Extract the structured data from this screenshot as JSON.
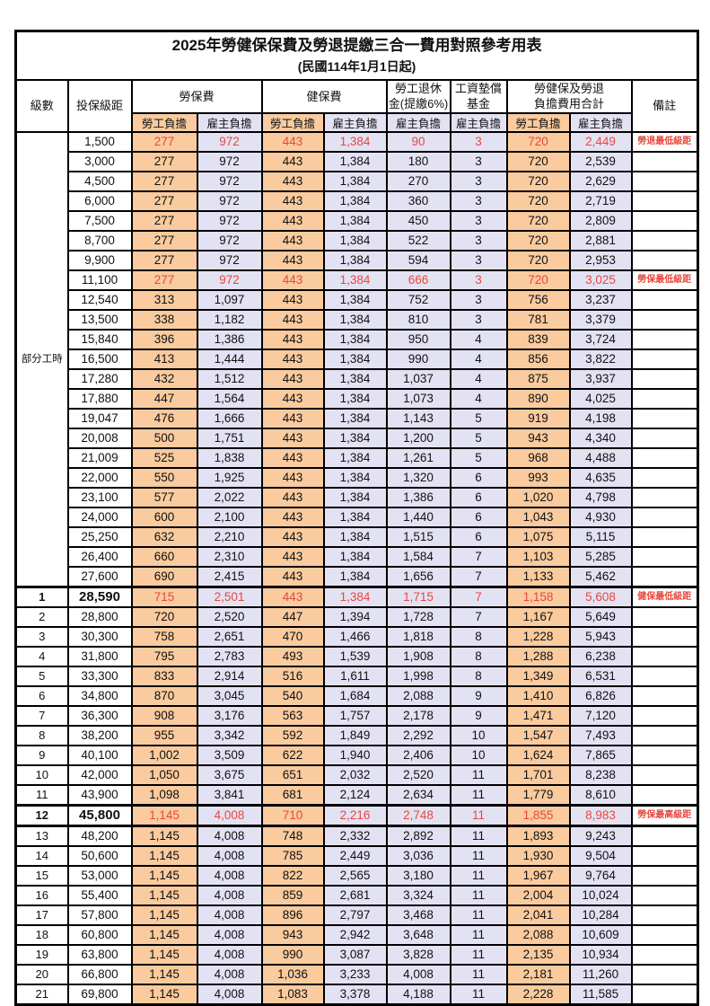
{
  "title": "2025年勞健保保費及勞退提繳三合一費用對照參考用表",
  "subtitle": "(民國114年1月1日起)",
  "colors": {
    "employee-bg": "#F9CB9E",
    "employer-bg": "#E3E2F3",
    "highlight-red": "#E8473D",
    "border-color": "#000000"
  },
  "table": {
    "headers": {
      "level": "級數",
      "bracket": "投保級距",
      "labor": "勞保費",
      "health": "健保費",
      "pension_line1": "勞工退休",
      "pension_line2": "金(提繳6%)",
      "wage_fund_line1": "工資墊償",
      "wage_fund_line2": "基金",
      "total_line1": "勞健保及勞退",
      "total_line2": "負擔費用合計",
      "note": "備註",
      "employee": "勞工負擔",
      "employer": "雇主負擔"
    },
    "part_time_label": "部分工時",
    "part_time_rowspan": 23,
    "value_column_kinds": [
      "c-emp",
      "c-er",
      "c-emp",
      "c-er",
      "c-er",
      "c-er",
      "c-emp",
      "c-er"
    ],
    "rows": [
      {
        "bracket": "1,500",
        "values": [
          "277",
          "972",
          "443",
          "1,384",
          "90",
          "3",
          "720",
          "2,449"
        ],
        "note": "勞退最低級距",
        "red": true
      },
      {
        "bracket": "3,000",
        "values": [
          "277",
          "972",
          "443",
          "1,384",
          "180",
          "3",
          "720",
          "2,539"
        ]
      },
      {
        "bracket": "4,500",
        "values": [
          "277",
          "972",
          "443",
          "1,384",
          "270",
          "3",
          "720",
          "2,629"
        ]
      },
      {
        "bracket": "6,000",
        "values": [
          "277",
          "972",
          "443",
          "1,384",
          "360",
          "3",
          "720",
          "2,719"
        ]
      },
      {
        "bracket": "7,500",
        "values": [
          "277",
          "972",
          "443",
          "1,384",
          "450",
          "3",
          "720",
          "2,809"
        ]
      },
      {
        "bracket": "8,700",
        "values": [
          "277",
          "972",
          "443",
          "1,384",
          "522",
          "3",
          "720",
          "2,881"
        ]
      },
      {
        "bracket": "9,900",
        "values": [
          "277",
          "972",
          "443",
          "1,384",
          "594",
          "3",
          "720",
          "2,953"
        ]
      },
      {
        "bracket": "11,100",
        "values": [
          "277",
          "972",
          "443",
          "1,384",
          "666",
          "3",
          "720",
          "3,025"
        ],
        "note": "勞保最低級距",
        "red": true
      },
      {
        "bracket": "12,540",
        "values": [
          "313",
          "1,097",
          "443",
          "1,384",
          "752",
          "3",
          "756",
          "3,237"
        ]
      },
      {
        "bracket": "13,500",
        "values": [
          "338",
          "1,182",
          "443",
          "1,384",
          "810",
          "3",
          "781",
          "3,379"
        ]
      },
      {
        "bracket": "15,840",
        "values": [
          "396",
          "1,386",
          "443",
          "1,384",
          "950",
          "4",
          "839",
          "3,724"
        ]
      },
      {
        "bracket": "16,500",
        "values": [
          "413",
          "1,444",
          "443",
          "1,384",
          "990",
          "4",
          "856",
          "3,822"
        ]
      },
      {
        "bracket": "17,280",
        "values": [
          "432",
          "1,512",
          "443",
          "1,384",
          "1,037",
          "4",
          "875",
          "3,937"
        ]
      },
      {
        "bracket": "17,880",
        "values": [
          "447",
          "1,564",
          "443",
          "1,384",
          "1,073",
          "4",
          "890",
          "4,025"
        ]
      },
      {
        "bracket": "19,047",
        "values": [
          "476",
          "1,666",
          "443",
          "1,384",
          "1,143",
          "5",
          "919",
          "4,198"
        ]
      },
      {
        "bracket": "20,008",
        "values": [
          "500",
          "1,751",
          "443",
          "1,384",
          "1,200",
          "5",
          "943",
          "4,340"
        ]
      },
      {
        "bracket": "21,009",
        "values": [
          "525",
          "1,838",
          "443",
          "1,384",
          "1,261",
          "5",
          "968",
          "4,488"
        ]
      },
      {
        "bracket": "22,000",
        "values": [
          "550",
          "1,925",
          "443",
          "1,384",
          "1,320",
          "6",
          "993",
          "4,635"
        ]
      },
      {
        "bracket": "23,100",
        "values": [
          "577",
          "2,022",
          "443",
          "1,384",
          "1,386",
          "6",
          "1,020",
          "4,798"
        ]
      },
      {
        "bracket": "24,000",
        "values": [
          "600",
          "2,100",
          "443",
          "1,384",
          "1,440",
          "6",
          "1,043",
          "4,930"
        ]
      },
      {
        "bracket": "25,250",
        "values": [
          "632",
          "2,210",
          "443",
          "1,384",
          "1,515",
          "6",
          "1,075",
          "5,115"
        ]
      },
      {
        "bracket": "26,400",
        "values": [
          "660",
          "2,310",
          "443",
          "1,384",
          "1,584",
          "7",
          "1,103",
          "5,285"
        ]
      },
      {
        "bracket": "27,600",
        "values": [
          "690",
          "2,415",
          "443",
          "1,384",
          "1,656",
          "7",
          "1,133",
          "5,462"
        ]
      },
      {
        "level": "1",
        "bracket": "28,590",
        "values": [
          "715",
          "2,501",
          "443",
          "1,384",
          "1,715",
          "7",
          "1,158",
          "5,608"
        ],
        "note": "健保最低級距",
        "red": true,
        "em": true,
        "sep": true
      },
      {
        "level": "2",
        "bracket": "28,800",
        "values": [
          "720",
          "2,520",
          "447",
          "1,394",
          "1,728",
          "7",
          "1,167",
          "5,649"
        ]
      },
      {
        "level": "3",
        "bracket": "30,300",
        "values": [
          "758",
          "2,651",
          "470",
          "1,466",
          "1,818",
          "8",
          "1,228",
          "5,943"
        ]
      },
      {
        "level": "4",
        "bracket": "31,800",
        "values": [
          "795",
          "2,783",
          "493",
          "1,539",
          "1,908",
          "8",
          "1,288",
          "6,238"
        ]
      },
      {
        "level": "5",
        "bracket": "33,300",
        "values": [
          "833",
          "2,914",
          "516",
          "1,611",
          "1,998",
          "8",
          "1,349",
          "6,531"
        ]
      },
      {
        "level": "6",
        "bracket": "34,800",
        "values": [
          "870",
          "3,045",
          "540",
          "1,684",
          "2,088",
          "9",
          "1,410",
          "6,826"
        ]
      },
      {
        "level": "7",
        "bracket": "36,300",
        "values": [
          "908",
          "3,176",
          "563",
          "1,757",
          "2,178",
          "9",
          "1,471",
          "7,120"
        ]
      },
      {
        "level": "8",
        "bracket": "38,200",
        "values": [
          "955",
          "3,342",
          "592",
          "1,849",
          "2,292",
          "10",
          "1,547",
          "7,493"
        ]
      },
      {
        "level": "9",
        "bracket": "40,100",
        "values": [
          "1,002",
          "3,509",
          "622",
          "1,940",
          "2,406",
          "10",
          "1,624",
          "7,865"
        ]
      },
      {
        "level": "10",
        "bracket": "42,000",
        "values": [
          "1,050",
          "3,675",
          "651",
          "2,032",
          "2,520",
          "11",
          "1,701",
          "8,238"
        ]
      },
      {
        "level": "11",
        "bracket": "43,900",
        "values": [
          "1,098",
          "3,841",
          "681",
          "2,124",
          "2,634",
          "11",
          "1,779",
          "8,610"
        ]
      },
      {
        "level": "12",
        "bracket": "45,800",
        "values": [
          "1,145",
          "4,008",
          "710",
          "2,216",
          "2,748",
          "11",
          "1,855",
          "8,983"
        ],
        "note": "勞保最高級距",
        "red": true,
        "em": true,
        "sep": true
      },
      {
        "level": "13",
        "bracket": "48,200",
        "values": [
          "1,145",
          "4,008",
          "748",
          "2,332",
          "2,892",
          "11",
          "1,893",
          "9,243"
        ],
        "sep": true
      },
      {
        "level": "14",
        "bracket": "50,600",
        "values": [
          "1,145",
          "4,008",
          "785",
          "2,449",
          "3,036",
          "11",
          "1,930",
          "9,504"
        ]
      },
      {
        "level": "15",
        "bracket": "53,000",
        "values": [
          "1,145",
          "4,008",
          "822",
          "2,565",
          "3,180",
          "11",
          "1,967",
          "9,764"
        ]
      },
      {
        "level": "16",
        "bracket": "55,400",
        "values": [
          "1,145",
          "4,008",
          "859",
          "2,681",
          "3,324",
          "11",
          "2,004",
          "10,024"
        ]
      },
      {
        "level": "17",
        "bracket": "57,800",
        "values": [
          "1,145",
          "4,008",
          "896",
          "2,797",
          "3,468",
          "11",
          "2,041",
          "10,284"
        ]
      },
      {
        "level": "18",
        "bracket": "60,800",
        "values": [
          "1,145",
          "4,008",
          "943",
          "2,942",
          "3,648",
          "11",
          "2,088",
          "10,609"
        ]
      },
      {
        "level": "19",
        "bracket": "63,800",
        "values": [
          "1,145",
          "4,008",
          "990",
          "3,087",
          "3,828",
          "11",
          "2,135",
          "10,934"
        ]
      },
      {
        "level": "20",
        "bracket": "66,800",
        "values": [
          "1,145",
          "4,008",
          "1,036",
          "3,233",
          "4,008",
          "11",
          "2,181",
          "11,260"
        ]
      },
      {
        "level": "21",
        "bracket": "69,800",
        "values": [
          "1,145",
          "4,008",
          "1,083",
          "3,378",
          "4,188",
          "11",
          "2,228",
          "11,585"
        ]
      }
    ]
  }
}
